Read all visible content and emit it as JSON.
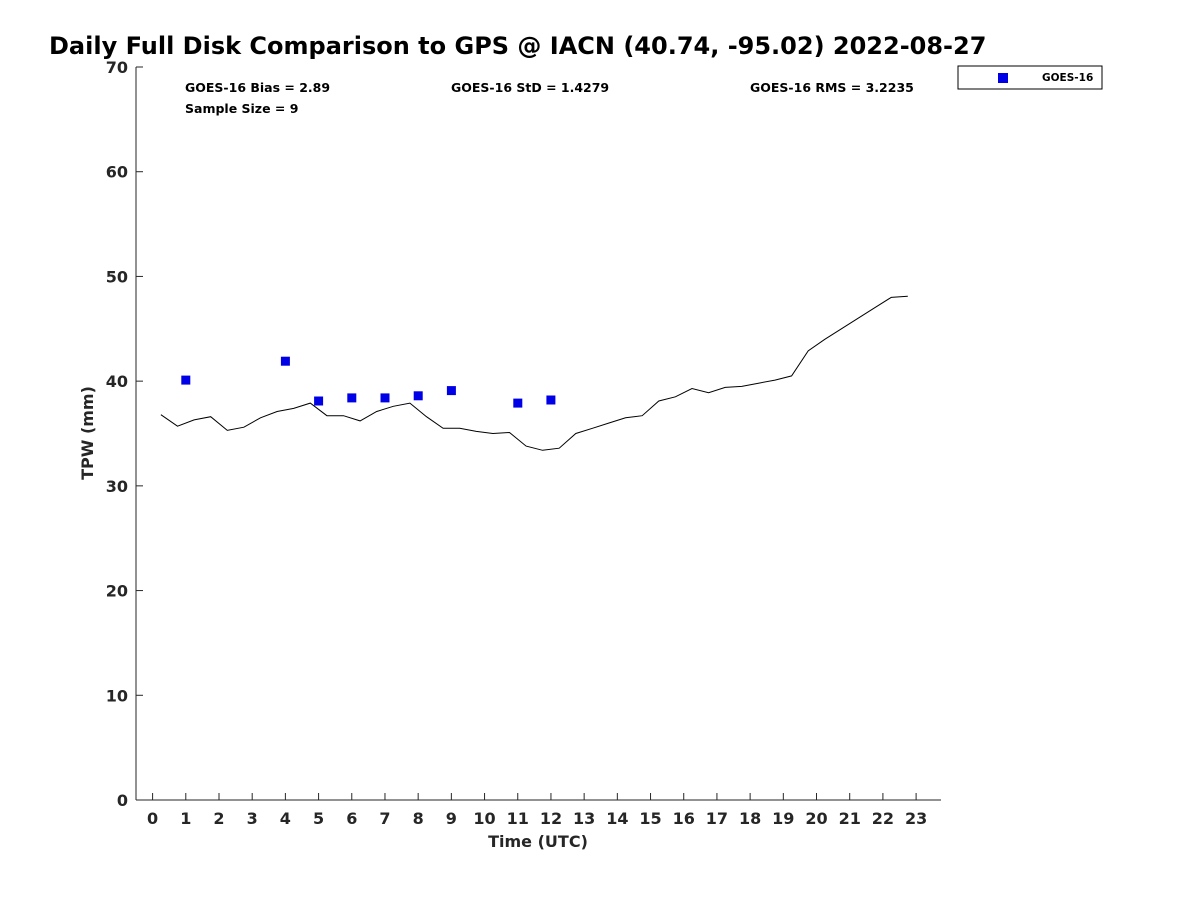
{
  "chart_data": {
    "type": "scatter",
    "title": "Daily Full Disk Comparison to GPS @ IACN (40.74, -95.02) 2022-08-27",
    "xlabel": "Time (UTC)",
    "ylabel": "TPW (mm)",
    "xlim": [
      -0.5,
      23.75
    ],
    "ylim": [
      0,
      70
    ],
    "x_ticks": [
      0,
      1,
      2,
      3,
      4,
      5,
      6,
      7,
      8,
      9,
      10,
      11,
      12,
      13,
      14,
      15,
      16,
      17,
      18,
      19,
      20,
      21,
      22,
      23
    ],
    "x_tick_labels": [
      "0",
      "1",
      "2",
      "3",
      "4",
      "5",
      "6",
      "7",
      "8",
      "9",
      "10",
      "11",
      "12",
      "13",
      "14",
      "15",
      "16",
      "17",
      "18",
      "19",
      "20",
      "21",
      "22",
      "23"
    ],
    "y_ticks": [
      0,
      10,
      20,
      30,
      40,
      50,
      60,
      70
    ],
    "y_tick_labels": [
      "0",
      "10",
      "20",
      "30",
      "40",
      "50",
      "60",
      "70"
    ],
    "grid": false,
    "legend_position": "top-right, outside plot",
    "stats": {
      "bias": "GOES-16 Bias = 2.89",
      "std": "GOES-16 StD = 1.4279",
      "rms": "GOES-16 RMS = 3.2235",
      "sample_size": "Sample Size = 9"
    },
    "series": [
      {
        "role": "gps-reference-line",
        "color": "#000000",
        "x": [
          0.25,
          0.75,
          1.25,
          1.75,
          2.25,
          2.75,
          3.25,
          3.75,
          4.25,
          4.75,
          5.25,
          5.75,
          6.25,
          6.75,
          7.25,
          7.75,
          8.25,
          8.75,
          9.25,
          9.75,
          10.25,
          10.75,
          11.25,
          11.75,
          12.25,
          12.75,
          13.25,
          13.75,
          14.25,
          14.75,
          15.25,
          15.75,
          16.25,
          16.75,
          17.25,
          17.75,
          18.25,
          18.75,
          19.25,
          19.75,
          20.25,
          20.75,
          21.25,
          21.75,
          22.25,
          22.75
        ],
        "y": [
          36.8,
          35.7,
          36.3,
          36.6,
          35.3,
          35.6,
          36.5,
          37.1,
          37.4,
          37.9,
          36.7,
          36.7,
          36.2,
          37.1,
          37.6,
          37.9,
          36.6,
          35.5,
          35.5,
          35.2,
          35.0,
          35.1,
          33.8,
          33.4,
          33.6,
          35.0,
          35.5,
          36.0,
          36.5,
          36.7,
          38.1,
          38.5,
          39.3,
          38.9,
          39.4,
          39.5,
          39.8,
          40.1,
          40.5,
          42.9,
          44.0,
          45.0,
          46.0,
          47.0,
          48.0,
          48.1
        ]
      },
      {
        "name": "GOES-16",
        "marker": "square",
        "color": "#0000e6",
        "x": [
          1,
          4,
          5,
          6,
          7,
          8,
          9,
          11,
          12
        ],
        "y": [
          40.1,
          41.9,
          38.1,
          38.4,
          38.4,
          38.6,
          39.1,
          37.9,
          38.2
        ]
      }
    ]
  }
}
